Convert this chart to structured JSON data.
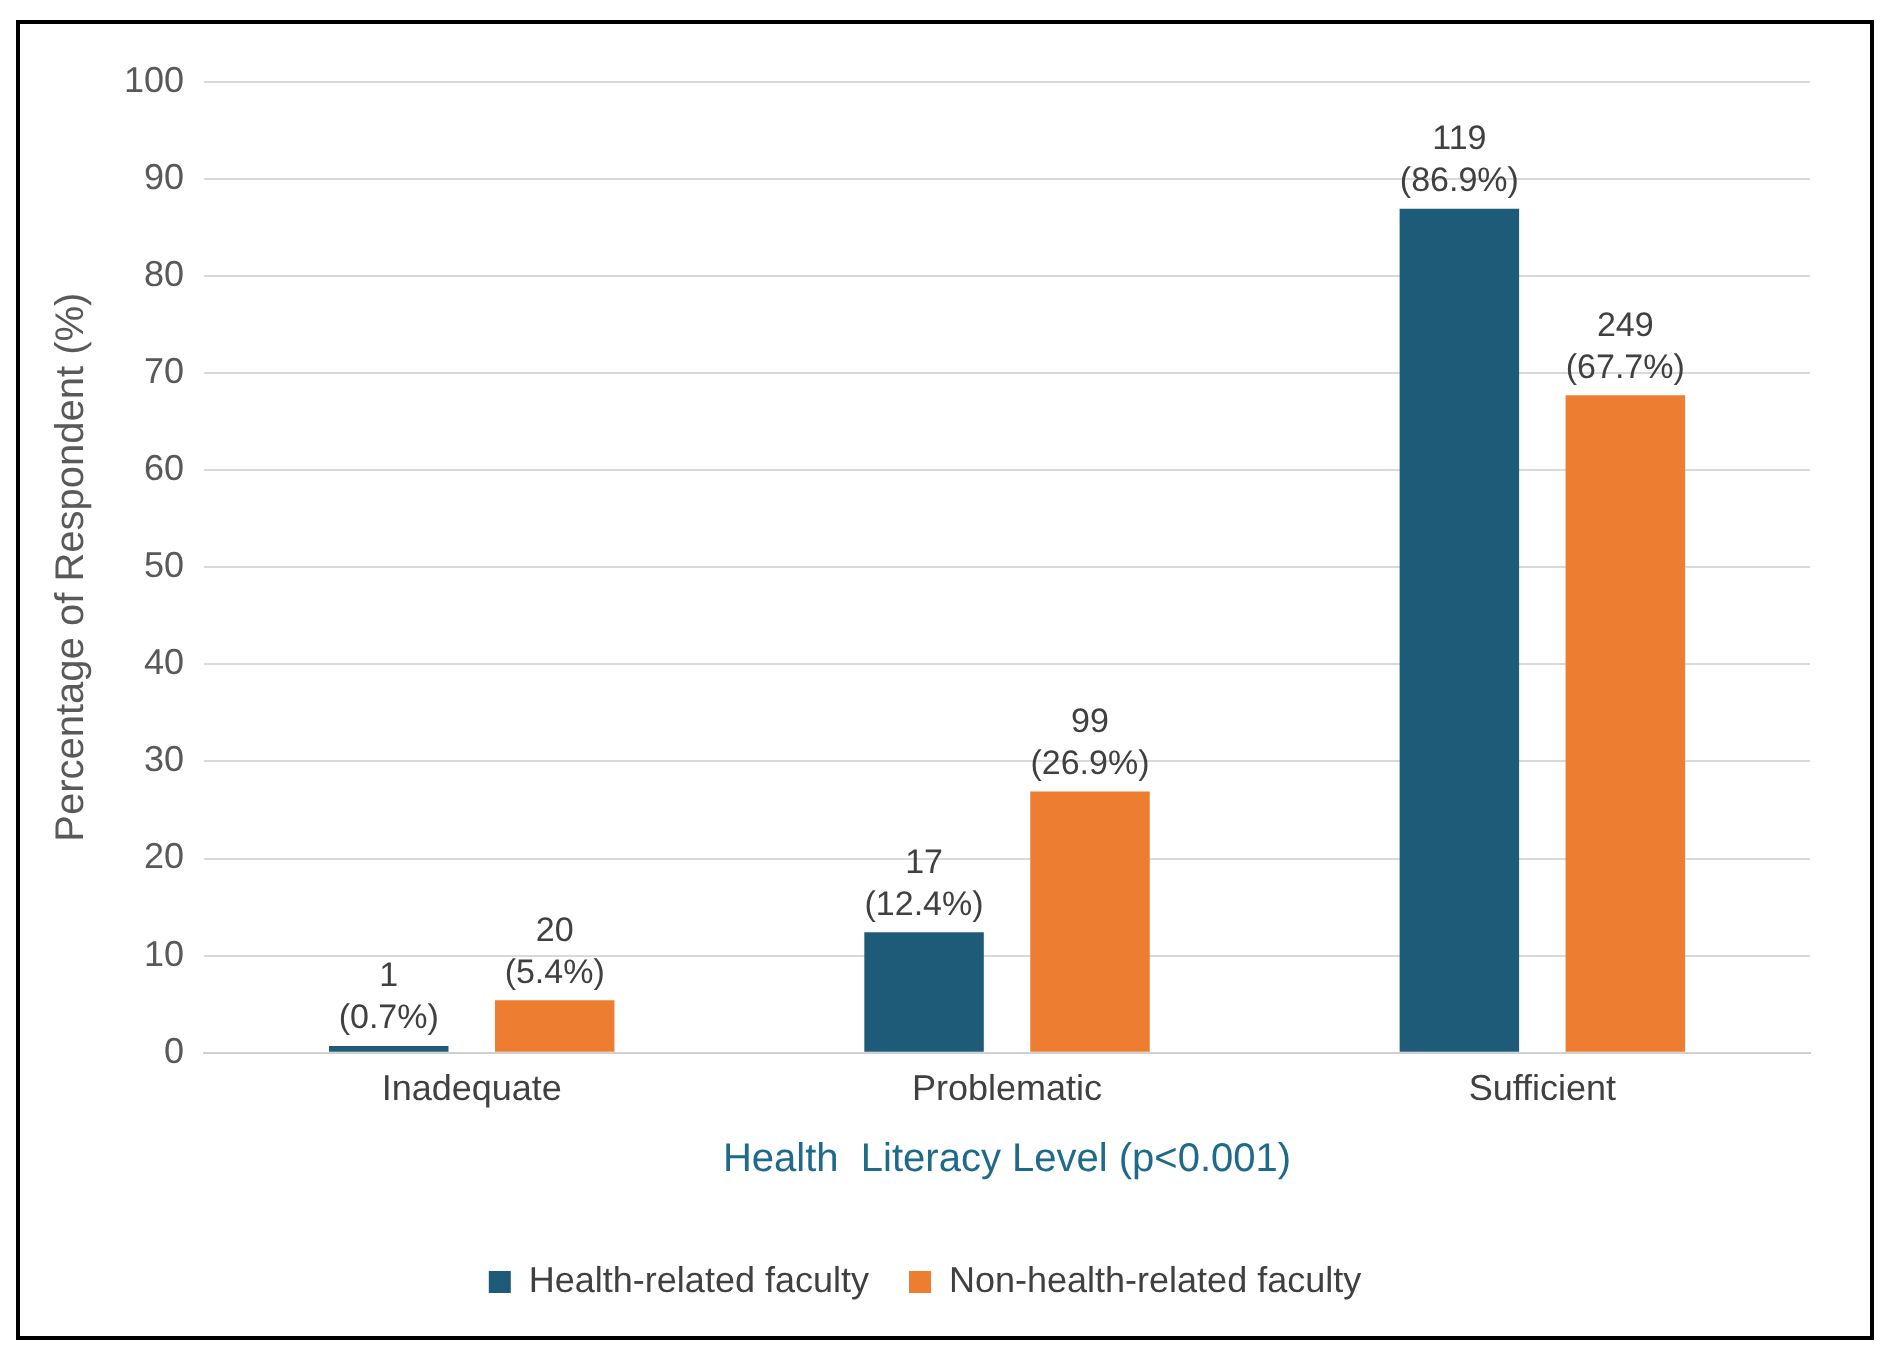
{
  "chart_data": {
    "type": "bar",
    "xlabel": "Health  Literacy Level (p<0.001)",
    "ylabel": "Percentage of Respondent (%)",
    "categories": [
      "Inadequate",
      "Problematic",
      "Sufficient"
    ],
    "series": [
      {
        "name": "Health-related faculty",
        "color": "#1e5b78",
        "values": [
          0.7,
          12.4,
          86.9
        ],
        "value_labels": [
          "1\n(0.7%)",
          "17\n(12.4%)",
          "119\n(86.9%)"
        ]
      },
      {
        "name": "Non-health-related faculty",
        "color": "#ed7d31",
        "values": [
          5.4,
          26.9,
          67.7
        ],
        "value_labels": [
          "20\n(5.4%)",
          "99\n(26.9%)",
          "249\n(67.7%)"
        ]
      }
    ],
    "ylim": [
      0,
      100
    ],
    "yticks": [
      0,
      10,
      20,
      30,
      40,
      50,
      60,
      70,
      80,
      90,
      100
    ],
    "grid": "y",
    "legend": "bottom"
  }
}
